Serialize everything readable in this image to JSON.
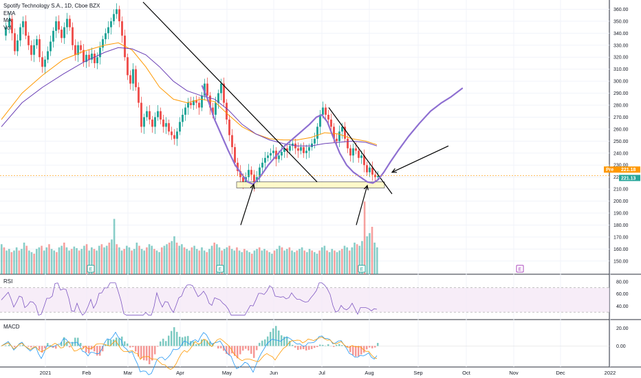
{
  "legend": {
    "title": "Spotify Technology S.A., 1D, Cboe BZX",
    "ema": "EMA",
    "ma": "MA",
    "vol": "Vol"
  },
  "panes": {
    "rsi_label": "RSI",
    "macd_label": "MACD"
  },
  "price_tags": {
    "pre_label": "Pre",
    "pre_value": "221.18",
    "last_value": "221.13",
    "pre_color": "#ff9800",
    "last_color": "#26a69a"
  },
  "colors": {
    "up": "#26a69a",
    "down": "#ef5350",
    "ema": "#ff9800",
    "ma": "#6a3fb5",
    "annotation": "#8e6fd1",
    "zone": "#fff9c4"
  },
  "chart_data": {
    "type": "candlestick",
    "price_axis": {
      "ylim": [
        143,
        366
      ],
      "ticks": [
        "360.00",
        "350.00",
        "340.00",
        "330.00",
        "320.00",
        "310.00",
        "300.00",
        "290.00",
        "280.00",
        "270.00",
        "260.00",
        "250.00",
        "240.00",
        "230.00",
        "220.00",
        "210.00",
        "200.00",
        "190.00",
        "180.00",
        "170.00",
        "160.00",
        "150.00"
      ]
    },
    "rsi_axis": {
      "ticks": [
        "80.00",
        "60.00",
        "40.00"
      ],
      "band": [
        30,
        70
      ]
    },
    "macd_axis": {
      "ticks": [
        "20.00",
        "0.00"
      ]
    },
    "x_ticks": [
      "2021",
      "Feb",
      "Mar",
      "Apr",
      "May",
      "Jun",
      "Jul",
      "Aug",
      "Sep",
      "Oct",
      "Nov",
      "Dec",
      "2022"
    ],
    "events": [
      "E",
      "E",
      "E",
      "E"
    ],
    "price_path": [
      [
        0,
        338
      ],
      [
        5,
        345
      ],
      [
        10,
        352
      ],
      [
        14,
        340
      ],
      [
        18,
        325
      ],
      [
        22,
        334
      ],
      [
        26,
        345
      ],
      [
        30,
        350
      ],
      [
        34,
        338
      ],
      [
        38,
        330
      ],
      [
        42,
        322
      ],
      [
        46,
        330
      ],
      [
        50,
        335
      ],
      [
        54,
        320
      ],
      [
        58,
        312
      ],
      [
        62,
        318
      ],
      [
        66,
        325
      ],
      [
        70,
        333
      ],
      [
        74,
        342
      ],
      [
        78,
        350
      ],
      [
        82,
        343
      ],
      [
        86,
        336
      ],
      [
        90,
        345
      ],
      [
        94,
        352
      ],
      [
        98,
        345
      ],
      [
        102,
        330
      ],
      [
        106,
        322
      ],
      [
        110,
        330
      ],
      [
        114,
        326
      ],
      [
        118,
        316
      ],
      [
        122,
        322
      ],
      [
        126,
        318
      ],
      [
        130,
        323
      ],
      [
        134,
        315
      ],
      [
        138,
        320
      ],
      [
        142,
        328
      ],
      [
        146,
        335
      ],
      [
        150,
        340
      ],
      [
        154,
        345
      ],
      [
        158,
        350
      ],
      [
        162,
        356
      ],
      [
        166,
        360
      ],
      [
        170,
        350
      ],
      [
        174,
        338
      ],
      [
        178,
        320
      ],
      [
        182,
        305
      ],
      [
        186,
        298
      ],
      [
        190,
        310
      ],
      [
        194,
        295
      ],
      [
        198,
        282
      ],
      [
        202,
        262
      ],
      [
        206,
        270
      ],
      [
        210,
        275
      ],
      [
        214,
        268
      ],
      [
        218,
        262
      ],
      [
        222,
        270
      ],
      [
        226,
        275
      ],
      [
        230,
        268
      ],
      [
        234,
        262
      ],
      [
        238,
        265
      ],
      [
        242,
        258
      ],
      [
        246,
        255
      ],
      [
        250,
        252
      ],
      [
        254,
        258
      ],
      [
        258,
        266
      ],
      [
        262,
        272
      ],
      [
        266,
        278
      ],
      [
        270,
        282
      ],
      [
        274,
        280
      ],
      [
        278,
        284
      ],
      [
        282,
        282
      ],
      [
        286,
        278
      ],
      [
        290,
        288
      ],
      [
        294,
        298
      ],
      [
        298,
        288
      ],
      [
        302,
        278
      ],
      [
        306,
        272
      ],
      [
        310,
        282
      ],
      [
        314,
        290
      ],
      [
        318,
        298
      ],
      [
        322,
        282
      ],
      [
        326,
        268
      ],
      [
        330,
        255
      ],
      [
        334,
        245
      ],
      [
        338,
        232
      ],
      [
        342,
        225
      ],
      [
        346,
        220
      ],
      [
        350,
        216
      ],
      [
        354,
        220
      ],
      [
        358,
        226
      ],
      [
        362,
        222
      ],
      [
        366,
        214
      ],
      [
        370,
        220
      ],
      [
        374,
        228
      ],
      [
        378,
        232
      ],
      [
        382,
        236
      ],
      [
        386,
        238
      ],
      [
        390,
        240
      ],
      [
        394,
        242
      ],
      [
        398,
        235
      ],
      [
        402,
        238
      ],
      [
        406,
        241
      ],
      [
        410,
        244
      ],
      [
        414,
        242
      ],
      [
        418,
        246
      ],
      [
        422,
        248
      ],
      [
        426,
        244
      ],
      [
        430,
        242
      ],
      [
        434,
        245
      ],
      [
        438,
        240
      ],
      [
        442,
        242
      ],
      [
        446,
        245
      ],
      [
        450,
        248
      ],
      [
        454,
        252
      ],
      [
        458,
        262
      ],
      [
        462,
        272
      ],
      [
        466,
        278
      ],
      [
        470,
        272
      ],
      [
        474,
        268
      ],
      [
        478,
        262
      ],
      [
        482,
        252
      ],
      [
        486,
        250
      ],
      [
        490,
        258
      ],
      [
        494,
        262
      ],
      [
        498,
        252
      ],
      [
        502,
        244
      ],
      [
        506,
        238
      ],
      [
        510,
        244
      ],
      [
        514,
        242
      ],
      [
        518,
        236
      ],
      [
        522,
        238
      ],
      [
        526,
        230
      ],
      [
        530,
        224
      ],
      [
        534,
        228
      ],
      [
        538,
        222
      ],
      [
        542,
        220
      ],
      [
        546,
        221
      ]
    ],
    "ema_path": [
      [
        0,
        268
      ],
      [
        30,
        290
      ],
      [
        60,
        305
      ],
      [
        90,
        318
      ],
      [
        120,
        325
      ],
      [
        150,
        330
      ],
      [
        170,
        332
      ],
      [
        190,
        326
      ],
      [
        210,
        312
      ],
      [
        230,
        295
      ],
      [
        250,
        285
      ],
      [
        270,
        282
      ],
      [
        290,
        285
      ],
      [
        310,
        283
      ],
      [
        330,
        272
      ],
      [
        350,
        262
      ],
      [
        370,
        256
      ],
      [
        390,
        252
      ],
      [
        410,
        251
      ],
      [
        430,
        251
      ],
      [
        450,
        253
      ],
      [
        470,
        257
      ],
      [
        490,
        256
      ],
      [
        510,
        252
      ],
      [
        530,
        250
      ],
      [
        546,
        247
      ]
    ],
    "ma_path": [
      [
        0,
        262
      ],
      [
        30,
        282
      ],
      [
        60,
        295
      ],
      [
        90,
        306
      ],
      [
        120,
        316
      ],
      [
        150,
        324
      ],
      [
        170,
        328
      ],
      [
        190,
        327
      ],
      [
        210,
        322
      ],
      [
        230,
        312
      ],
      [
        250,
        300
      ],
      [
        270,
        292
      ],
      [
        290,
        288
      ],
      [
        310,
        285
      ],
      [
        330,
        276
      ],
      [
        350,
        264
      ],
      [
        370,
        256
      ],
      [
        390,
        251
      ],
      [
        410,
        248
      ],
      [
        430,
        246
      ],
      [
        450,
        246
      ],
      [
        470,
        248
      ],
      [
        490,
        249
      ],
      [
        510,
        250
      ],
      [
        530,
        249
      ],
      [
        546,
        246
      ]
    ],
    "annotation_curve": [
      [
        292,
        296
      ],
      [
        300,
        285
      ],
      [
        310,
        268
      ],
      [
        320,
        255
      ],
      [
        330,
        242
      ],
      [
        340,
        230
      ],
      [
        350,
        222
      ],
      [
        358,
        216
      ],
      [
        366,
        214
      ],
      [
        376,
        220
      ],
      [
        388,
        230
      ],
      [
        400,
        238
      ],
      [
        412,
        246
      ],
      [
        424,
        252
      ],
      [
        436,
        258
      ],
      [
        448,
        264
      ],
      [
        458,
        270
      ],
      [
        466,
        272
      ],
      [
        474,
        266
      ],
      [
        482,
        254
      ],
      [
        492,
        240
      ],
      [
        502,
        230
      ],
      [
        512,
        224
      ],
      [
        522,
        220
      ],
      [
        532,
        216
      ],
      [
        540,
        215
      ],
      [
        548,
        218
      ],
      [
        556,
        224
      ],
      [
        566,
        233
      ],
      [
        578,
        243
      ],
      [
        592,
        254
      ],
      [
        608,
        265
      ],
      [
        624,
        275
      ],
      [
        640,
        282
      ],
      [
        654,
        287
      ],
      [
        670,
        294
      ]
    ],
    "trendlines": [
      {
        "from": [
          208,
          366
        ],
        "to": [
          461,
          216
        ]
      },
      {
        "from": [
          478,
          278
        ],
        "to": [
          570,
          206
        ]
      }
    ],
    "support_zone": {
      "ylim": [
        211,
        216
      ]
    },
    "arrows": [
      {
        "from": [
          350,
          180
        ],
        "to": [
          369,
          214
        ]
      },
      {
        "from": [
          518,
          180
        ],
        "to": [
          534,
          213
        ]
      },
      {
        "from": [
          652,
          246
        ],
        "to": [
          570,
          224
        ]
      }
    ],
    "volume": [
      38,
      34,
      30,
      32,
      28,
      30,
      34,
      30,
      32,
      40,
      36,
      30,
      28,
      26,
      32,
      34,
      36,
      30,
      34,
      38,
      32,
      30,
      28,
      34,
      36,
      40,
      34,
      30,
      32,
      35,
      33,
      30,
      32,
      36,
      38,
      30,
      34,
      32,
      30,
      36,
      38,
      34,
      36,
      40,
      44,
      70,
      38,
      34,
      30,
      32,
      36,
      34,
      30,
      32,
      40,
      36,
      32,
      30,
      34,
      38,
      36,
      32,
      30,
      28,
      34,
      36,
      38,
      40,
      42,
      48,
      40,
      36,
      38,
      34,
      32,
      30,
      34,
      36,
      32,
      30,
      34,
      30,
      28,
      32,
      36,
      40,
      38,
      34,
      30,
      32,
      34,
      36,
      32,
      30,
      34,
      30,
      28,
      32,
      30,
      28,
      26,
      30,
      32,
      34,
      30,
      32,
      30,
      28,
      26,
      30,
      32,
      36,
      34,
      30,
      32,
      34,
      30,
      28,
      30,
      32,
      34,
      30,
      28,
      32,
      30,
      28,
      26,
      30,
      34,
      36,
      30,
      28,
      32,
      30,
      28,
      30,
      32,
      36,
      34,
      30,
      34,
      40,
      38,
      36,
      42,
      92,
      48,
      52,
      60,
      40,
      34
    ]
  }
}
